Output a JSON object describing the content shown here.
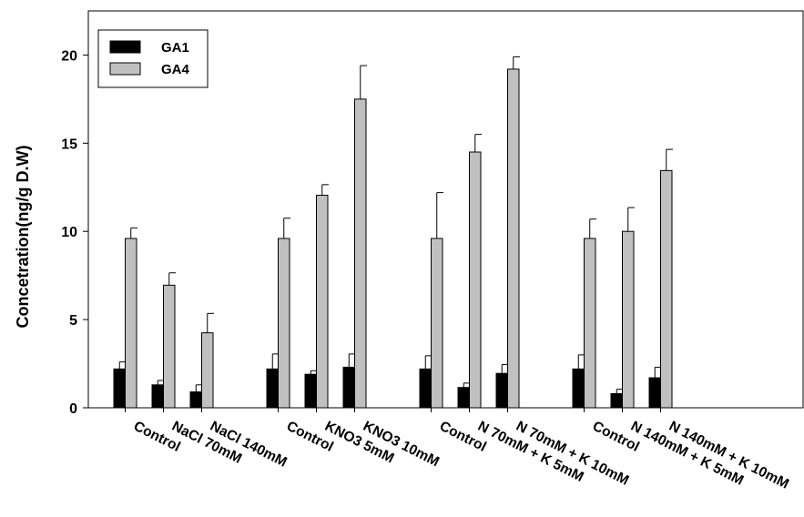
{
  "chart_data": {
    "type": "bar",
    "xlabel": "",
    "ylabel": "Concetration(ng/g D.W)",
    "ylim": [
      0,
      22.5
    ],
    "yticks": [
      0,
      5,
      10,
      15,
      20
    ],
    "grid": false,
    "legend_position": "top-left",
    "categories": [
      "Control",
      "NaCl 70mM",
      "NaCl 140mM",
      "Control",
      "KNO3 5mM",
      "KNO3 10mM",
      "Control",
      "N 70mM + K 5mM",
      "N 70mM + K 10mM",
      "Control",
      "N 140mM + K 5mM",
      "N 140mM + K 10mM"
    ],
    "groups": [
      [
        0,
        1,
        2
      ],
      [
        3,
        4,
        5
      ],
      [
        6,
        7,
        8
      ],
      [
        9,
        10,
        11
      ]
    ],
    "series": [
      {
        "name": "GA1",
        "color": "#000000",
        "values": [
          2.2,
          1.3,
          0.9,
          2.2,
          1.9,
          2.3,
          2.2,
          1.15,
          1.95,
          2.2,
          0.8,
          1.7
        ],
        "errors": [
          0.4,
          0.25,
          0.4,
          0.85,
          0.2,
          0.75,
          0.75,
          0.25,
          0.5,
          0.8,
          0.25,
          0.6
        ]
      },
      {
        "name": "GA4",
        "color": "#c0c0c0",
        "values": [
          9.6,
          6.95,
          4.25,
          9.6,
          12.05,
          17.5,
          9.6,
          14.5,
          19.2,
          9.6,
          10.0,
          13.45
        ],
        "errors": [
          0.6,
          0.7,
          1.1,
          1.15,
          0.6,
          1.9,
          2.6,
          1.0,
          0.7,
          1.1,
          1.35,
          1.2
        ]
      }
    ]
  }
}
